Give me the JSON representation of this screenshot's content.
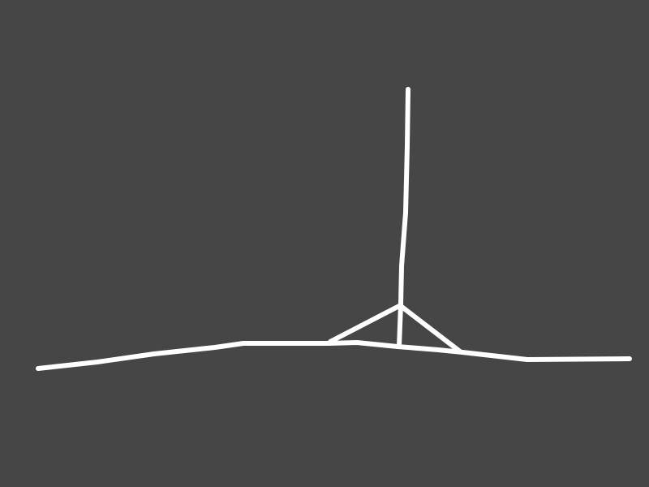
{
  "colors": {
    "background": "#464646",
    "stroke": "#ffffff"
  },
  "drawing": {
    "description_items": [
      "ground-line",
      "pole",
      "left-brace",
      "right-brace"
    ]
  }
}
